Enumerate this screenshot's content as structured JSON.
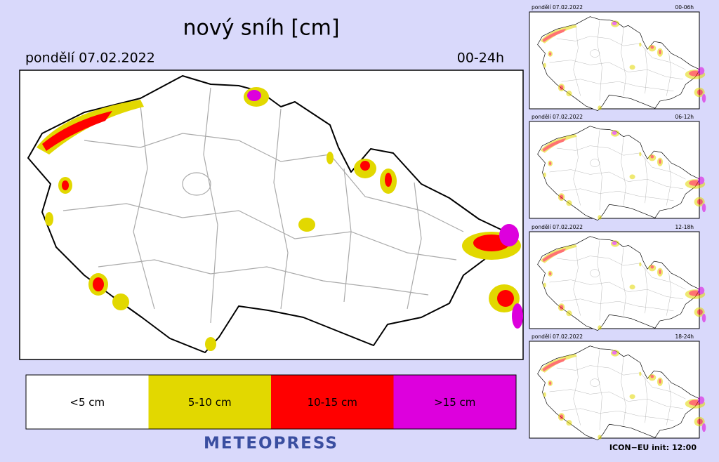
{
  "title": "nový sníh [cm]",
  "date": "pondělí 07.02.2022",
  "period": "00-24h",
  "legend": [
    {
      "label": "<5 cm",
      "color": "#ffffff"
    },
    {
      "label": "5-10 cm",
      "color": "#e2d800"
    },
    {
      "label": "10-15 cm",
      "color": "#ff0000"
    },
    {
      "label": ">15 cm",
      "color": "#dd00dd"
    }
  ],
  "brand": "METEOPRESS",
  "panels": [
    {
      "date": "pondělí 07.02.2022",
      "period": "00-06h"
    },
    {
      "date": "pondělí 07.02.2022",
      "period": "06-12h"
    },
    {
      "date": "pondělí 07.02.2022",
      "period": "12-18h"
    },
    {
      "date": "pondělí 07.02.2022",
      "period": "18-24h"
    }
  ],
  "footer": "ICON−EU  init:  12:00"
}
